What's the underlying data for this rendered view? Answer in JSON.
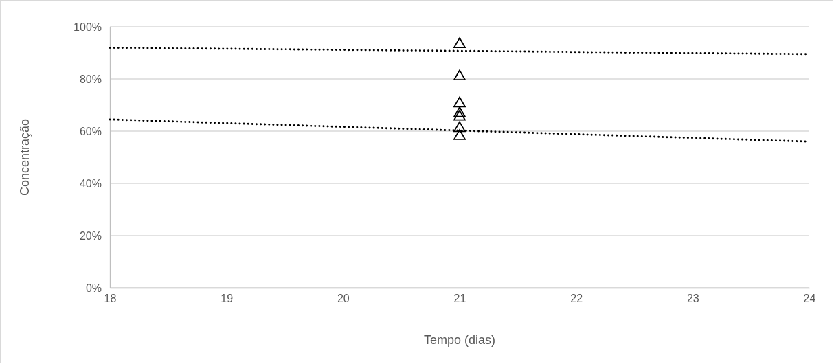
{
  "chart_data": {
    "type": "scatter",
    "xlabel": "Tempo (dias)",
    "ylabel": "Concentração",
    "xlim": [
      18,
      24
    ],
    "xticks": [
      18,
      19,
      20,
      21,
      22,
      23,
      24
    ],
    "ylim": [
      0,
      100
    ],
    "yticks": [
      {
        "value": 0,
        "label": "0%"
      },
      {
        "value": 20,
        "label": "20%"
      },
      {
        "value": 40,
        "label": "40%"
      },
      {
        "value": 60,
        "label": "60%"
      },
      {
        "value": 80,
        "label": "80%"
      },
      {
        "value": 100,
        "label": "100%"
      }
    ],
    "grid": "y",
    "marker": "triangle",
    "series": [
      {
        "color": "#000000",
        "x": [
          21,
          21,
          21,
          21,
          21,
          21,
          21
        ],
        "values": [
          93.3,
          80.9,
          70.6,
          66.8,
          65.5,
          61.1,
          58.1
        ]
      },
      {
        "type": "line",
        "color": "#000000",
        "line_style": "dotted",
        "marker": "none",
        "x": [
          18,
          24
        ],
        "values": [
          92,
          89.5
        ]
      },
      {
        "type": "line",
        "color": "#000000",
        "line_style": "dotted",
        "marker": "none",
        "x": [
          18,
          24
        ],
        "values": [
          64.5,
          56
        ]
      }
    ]
  }
}
